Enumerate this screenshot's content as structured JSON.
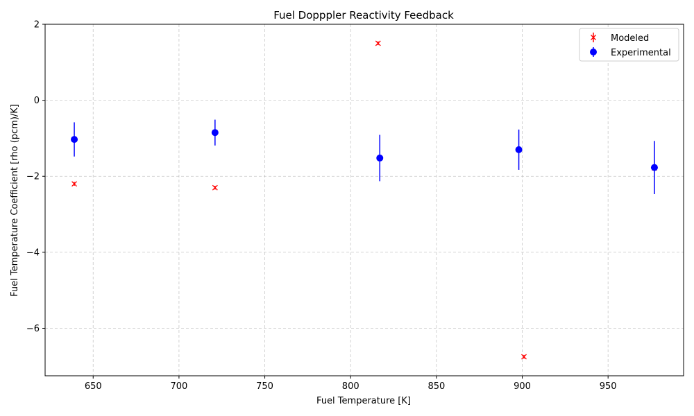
{
  "chart_data": {
    "type": "scatter",
    "title": "Fuel Dopppler Reactivity Feedback",
    "xlabel": "Fuel Temperature [K]",
    "ylabel": "Fuel Temperature Coefficient [rho (pcm)/K]",
    "xlim": [
      622,
      994
    ],
    "ylim": [
      -7.25,
      2.0
    ],
    "xticks": [
      650,
      700,
      750,
      800,
      850,
      900,
      950
    ],
    "yticks": [
      2,
      0,
      -2,
      -4,
      -6
    ],
    "xtick_labels": [
      "650",
      "700",
      "750",
      "800",
      "850",
      "900",
      "950"
    ],
    "ytick_labels": [
      "2",
      "0",
      "−2",
      "−4",
      "−6"
    ],
    "grid": true,
    "legend_position": "top-right",
    "series": [
      {
        "name": "Modeled",
        "marker": "x",
        "color": "#ff0000",
        "points": [
          {
            "x": 639,
            "y": -2.2,
            "err": 0.05
          },
          {
            "x": 721,
            "y": -2.3,
            "err": 0.05
          },
          {
            "x": 816,
            "y": 1.5,
            "err": 0.05
          },
          {
            "x": 901,
            "y": -6.75,
            "err": 0.05
          },
          {
            "x": 977,
            "y": -1.78,
            "err": 0.05
          }
        ]
      },
      {
        "name": "Experimental",
        "marker": "o",
        "color": "#0000ff",
        "points": [
          {
            "x": 639,
            "y": -1.03,
            "err": 0.45
          },
          {
            "x": 721,
            "y": -0.85,
            "err": 0.34
          },
          {
            "x": 817,
            "y": -1.52,
            "err": 0.61
          },
          {
            "x": 898,
            "y": -1.3,
            "err": 0.53
          },
          {
            "x": 977,
            "y": -1.77,
            "err": 0.7
          }
        ]
      }
    ]
  }
}
